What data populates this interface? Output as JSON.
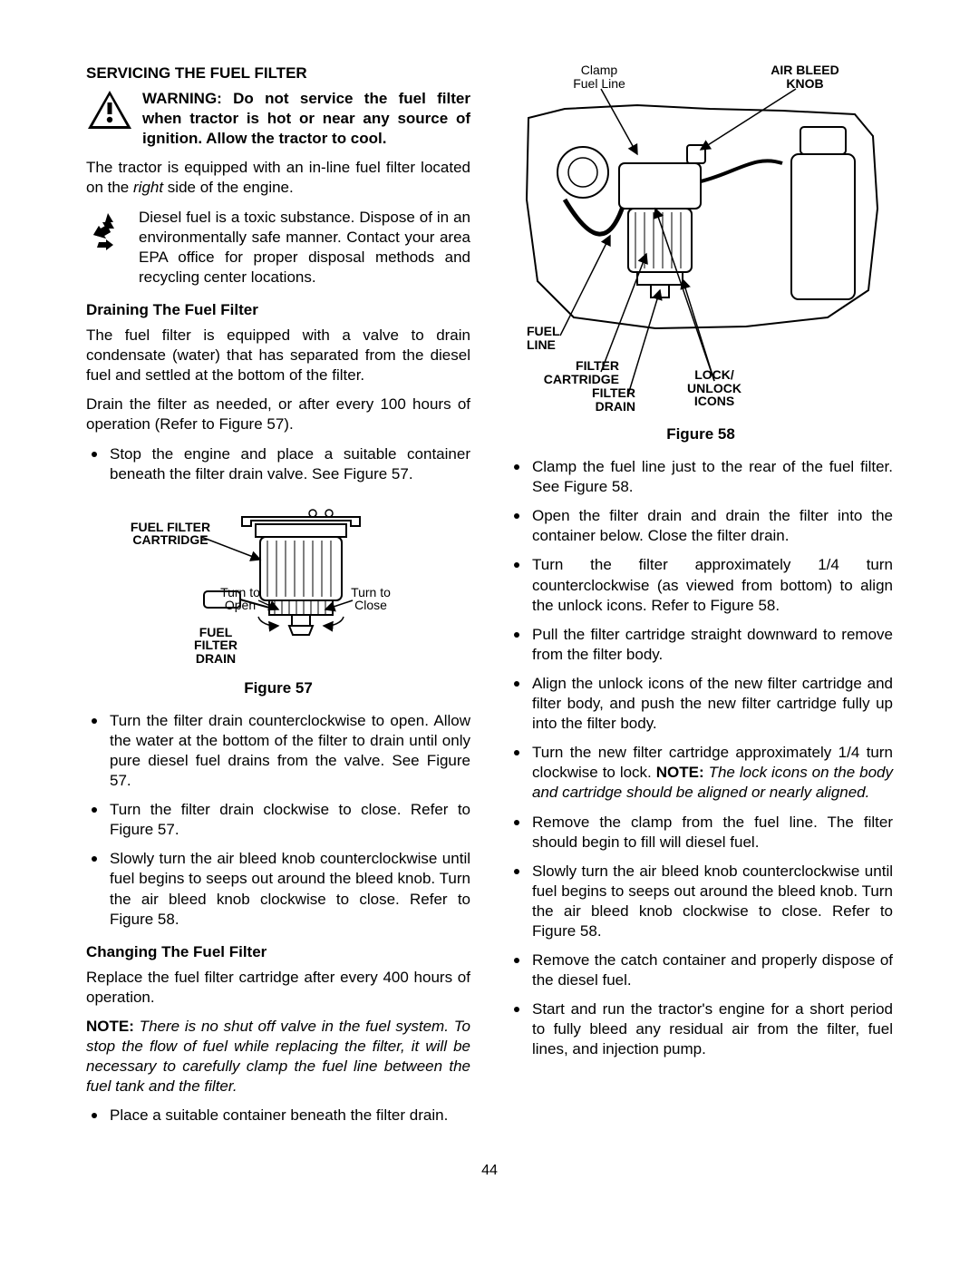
{
  "page_number": "44",
  "left": {
    "heading": "SERVICING THE FUEL FILTER",
    "warning": "WARNING: Do not service the fuel filter when tractor is hot or near any source of ignition. Allow the tractor to cool.",
    "intro_a": "The tractor is equipped with an in-line fuel filter located on the ",
    "intro_italic": "right",
    "intro_b": " side of the engine.",
    "recycle": "Diesel fuel  is a toxic substance. Dispose of in an environmentally safe manner. Contact your area EPA office for proper disposal methods and recycling center locations.",
    "drain_heading": "Draining The Fuel Filter",
    "drain_p1": "The fuel filter is equipped with a valve to drain condensate (water) that has separated from the diesel fuel and settled at the bottom of the filter.",
    "drain_p2": "Drain the filter as needed, or after every 100 hours of operation (Refer to Figure 57).",
    "bullet1": "Stop the engine and place a suitable container beneath the filter drain valve. See Figure 57.",
    "fig57": {
      "caption": "Figure 57",
      "label_cartridge": "FUEL FILTER\nCARTRIDGE",
      "label_drain": "FUEL\nFILTER\nDRAIN",
      "label_open": "Turn to\nOpen",
      "label_close": "Turn to\nClose"
    },
    "post_fig_bullets": [
      "Turn the filter drain counterclockwise to open. Allow the water at the bottom of the filter to drain until only pure diesel fuel drains from the valve. See Figure 57.",
      "Turn the filter drain clockwise to close. Refer to Figure 57.",
      "Slowly turn the air bleed knob counterclockwise until fuel begins to seeps out around the bleed knob. Turn the air bleed knob clockwise to close. Refer to Figure 58."
    ],
    "change_heading": "Changing The Fuel Filter",
    "change_p1": "Replace the fuel filter cartridge after every 400 hours of operation.",
    "note_bold": "NOTE:",
    "note_italic": " There is no shut off valve in the fuel system. To stop the flow of fuel while replacing the filter, it will be necessary to carefully clamp the fuel line between the fuel tank and the filter.",
    "bullet_last": "Place a suitable container beneath the filter drain."
  },
  "right": {
    "fig58": {
      "caption": "Figure 58",
      "label_clamp": "Clamp\nFuel Line",
      "label_airbleed": "AIR BLEED\nKNOB",
      "label_fuelline": "FUEL\nLINE",
      "label_cartridge": "FILTER\nCARTRIDGE",
      "label_drain": "FILTER\nDRAIN",
      "label_icons": "LOCK/\nUNLOCK\nICONS"
    },
    "bullets": [
      {
        "text": "Clamp the fuel line just to the rear of the fuel filter. See Figure 58."
      },
      {
        "text": "Open the filter drain and drain the filter into the container below. Close the filter drain."
      },
      {
        "text": "Turn the filter approximately 1/4 turn counterclockwise (as viewed from bottom) to align the unlock icons. Refer to Figure 58."
      },
      {
        "text": "Pull the filter cartridge straight downward to remove from the filter body."
      },
      {
        "text": "Align the unlock icons of the new filter cartridge and filter body, and push the new filter cartridge fully up into the filter body."
      },
      {
        "pre": "Turn the new filter cartridge approximately 1/4 turn clockwise to lock. ",
        "note_bold": "NOTE:",
        "note_italic": " The lock icons on the body and cartridge should be aligned or nearly aligned."
      },
      {
        "text": "Remove the clamp from the fuel line. The filter should begin to fill will diesel fuel."
      },
      {
        "text": "Slowly turn the air bleed knob counterclockwise until fuel begins to seeps out around the bleed knob. Turn the air bleed knob clockwise to close. Refer to Figure 58."
      },
      {
        "text": "Remove the catch container and properly dispose of the diesel fuel."
      },
      {
        "text": "Start and run the tractor's engine for a short period to fully bleed any residual air from the filter, fuel lines, and injection pump."
      }
    ]
  }
}
